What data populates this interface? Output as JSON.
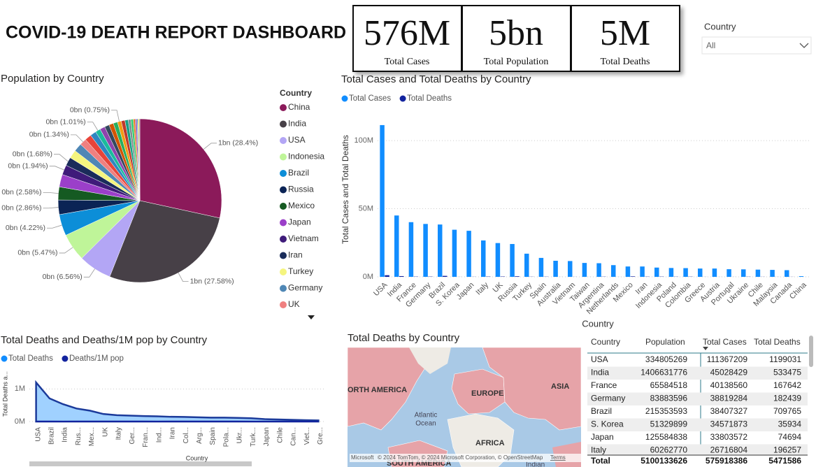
{
  "header": {
    "title": "COVID-19 DEATH REPORT DASHBOARD"
  },
  "cards": [
    {
      "value": "576M",
      "label": "Total Cases"
    },
    {
      "value": "5bn",
      "label": "Total Population"
    },
    {
      "value": "5M",
      "label": "Total Deaths"
    }
  ],
  "slicer": {
    "title": "Country",
    "value": "All"
  },
  "chart_data": [
    {
      "type": "pie",
      "title": "Population by Country",
      "legend_title": "Country",
      "categories": [
        "China",
        "India",
        "USA",
        "Indonesia",
        "Brazil",
        "Russia",
        "Mexico",
        "Japan",
        "Vietnam",
        "Iran",
        "Turkey",
        "Germany",
        "UK",
        null,
        null,
        null,
        null,
        null,
        null,
        null,
        null,
        null,
        null,
        null,
        null,
        null,
        null,
        null,
        null,
        null
      ],
      "values": [
        28.4,
        27.58,
        6.56,
        5.47,
        4.22,
        2.86,
        2.58,
        2.46,
        1.94,
        1.68,
        1.66,
        1.64,
        1.34,
        1.29,
        1.18,
        1.01,
        1.01,
        0.92,
        0.89,
        0.84,
        0.75,
        0.74,
        0.65,
        0.51,
        0.47,
        0.38,
        0.34,
        0.2,
        0.2,
        0.18
      ],
      "value_labels": [
        "1bn (28.4%)",
        "1bn (27.58%)",
        "0bn (6.56%)",
        "0bn (5.47%)",
        "0bn (4.22%)",
        "0bn (2.86%)",
        "0bn (2.58%)",
        null,
        "0bn (1.94%)",
        "0bn (1.68%)",
        null,
        null,
        "0bn (1.34%)",
        null,
        null,
        "0bn (1.01%)",
        null,
        null,
        null,
        null,
        "0bn (0.75%)",
        null,
        null,
        null,
        null,
        null,
        null,
        null,
        null,
        null
      ],
      "colors": [
        "#8B1A5A",
        "#474047",
        "#B3A6F5",
        "#BFF599",
        "#0C8ED8",
        "#0B2455",
        "#155A22",
        "#9B3FC9",
        "#3F1B7A",
        "#1A2C5A",
        "#F5F57F",
        "#4F87B5",
        "#F08080",
        "#E8443A",
        "#2E86C1",
        "#1ABC9C",
        "#8E44AD",
        "#34495E",
        "#D35400",
        "#27AE60",
        "#F39C12",
        "#C0392B",
        "#16A085",
        "#7F8C8D",
        "#2ECC71",
        "#E67E22",
        "#9B59B6",
        "#3498DB",
        "#F1C40F",
        "#95A5A6"
      ]
    },
    {
      "type": "bar",
      "title": "Total Cases and Total Deaths by Country",
      "y_label": "Total Cases and Total Deaths",
      "categories": [
        "USA",
        "India",
        "France",
        "Germany",
        "Brazil",
        "S. Korea",
        "Japan",
        "Italy",
        "UK",
        "Russia",
        "Turkey",
        "Spain",
        "Australia",
        "Vietnam",
        "Taiwan",
        "Argentina",
        "Netherlands",
        "Mexico",
        "Iran",
        "Indonesia",
        "Poland",
        "Colombia",
        "Greece",
        "Austria",
        "Portugal",
        "Ukraine",
        "Chile",
        "Malaysia",
        "Canada",
        "China"
      ],
      "series": [
        {
          "name": "Total Cases",
          "color": "#118DFF",
          "values": [
            111367209,
            45028429,
            40138560,
            38819284,
            38407327,
            34571873,
            33803572,
            26716804,
            24800000,
            24100000,
            17000000,
            13900000,
            11800000,
            11600000,
            10200000,
            10000000,
            8600000,
            7600000,
            7600000,
            6800000,
            6500000,
            6400000,
            6100000,
            6100000,
            5600000,
            5500000,
            5300000,
            5100000,
            4900000,
            500000
          ]
        },
        {
          "name": "Total Deaths",
          "color": "#12239E",
          "values": [
            1199031,
            533475,
            167642,
            182439,
            709765,
            35934,
            74694,
            196257,
            232112,
            400023,
            101419,
            121760,
            22000,
            43206,
            19000,
            130472,
            22990,
            334336,
            146000,
            161900,
            120000,
            142780,
            36000,
            22500,
            27000,
            112000,
            64000,
            37000,
            53000,
            5272
          ]
        }
      ],
      "ylim": [
        0,
        118000000
      ],
      "yticks": [
        {
          "value": 0,
          "label": "0M"
        },
        {
          "value": 50000000,
          "label": "50M"
        },
        {
          "value": 100000000,
          "label": "100M"
        }
      ],
      "grid": true
    },
    {
      "type": "area",
      "title": "Total Deaths and Deaths/1M pop by Country",
      "y_label": "Total Deaths a...",
      "x_label": "Country",
      "categories": [
        "USA",
        "Brazil",
        "India",
        "Rus...",
        "Mex...",
        "UK",
        "Italy",
        "Ger...",
        "Fran...",
        "Ind...",
        "Iran",
        "Col...",
        "Arg...",
        "Spain",
        "Pola...",
        "Ukr...",
        "Turk...",
        "Japan",
        "Chile",
        "Can...",
        "Viet...",
        "Gre..."
      ],
      "series": [
        {
          "name": "Total Deaths",
          "color": "#118DFF",
          "kind": "area",
          "values": [
            1199031,
            709765,
            533475,
            400023,
            334336,
            232112,
            196257,
            182439,
            167642,
            161900,
            146000,
            142780,
            130472,
            121760,
            120000,
            112000,
            101419,
            74694,
            64000,
            53000,
            43206,
            36000
          ]
        },
        {
          "name": "Deaths/1M pop",
          "color": "#12239E",
          "kind": "line",
          "values": [
            3581,
            3296,
            379,
            2753,
            2580,
            3450,
            3257,
            2175,
            2556,
            580,
            1710,
            2772,
            2867,
            2560,
            3180,
            2570,
            1190,
            595,
            3300,
            1385,
            440,
            3450
          ]
        }
      ],
      "ylim": [
        0,
        1350000
      ],
      "yticks": [
        {
          "value": 0,
          "label": "0M"
        },
        {
          "value": 1000000,
          "label": "1M"
        }
      ],
      "grid": true
    }
  ],
  "map": {
    "title": "Total Deaths by Country",
    "labels": [
      "NORTH AMERICA",
      "EUROPE",
      "ASIA",
      "Atlantic",
      "Ocean",
      "AFRICA",
      "SOUTH AMERICA",
      "Indian"
    ],
    "attribution": "© 2024 TomTom, © 2024 Microsoft Corporation, © OpenStreetMap",
    "terms": "Terms",
    "brand": "Microsoft"
  },
  "table": {
    "title": "Country",
    "columns": [
      "Country",
      "Population",
      "Total Cases",
      "Total Deaths"
    ],
    "rows": [
      [
        "USA",
        334805269,
        111367209,
        1199031
      ],
      [
        "India",
        1406631776,
        45028429,
        533475
      ],
      [
        "France",
        65584518,
        40138560,
        167642
      ],
      [
        "Germany",
        83883596,
        38819284,
        182439
      ],
      [
        "Brazil",
        215353593,
        38407327,
        709765
      ],
      [
        "S. Korea",
        51329899,
        34571873,
        35934
      ],
      [
        "Japan",
        125584838,
        33803572,
        74694
      ],
      [
        "Italy",
        60262770,
        26716804,
        196257
      ]
    ],
    "total": [
      "Total",
      5100133626,
      575918386,
      5471586
    ]
  }
}
